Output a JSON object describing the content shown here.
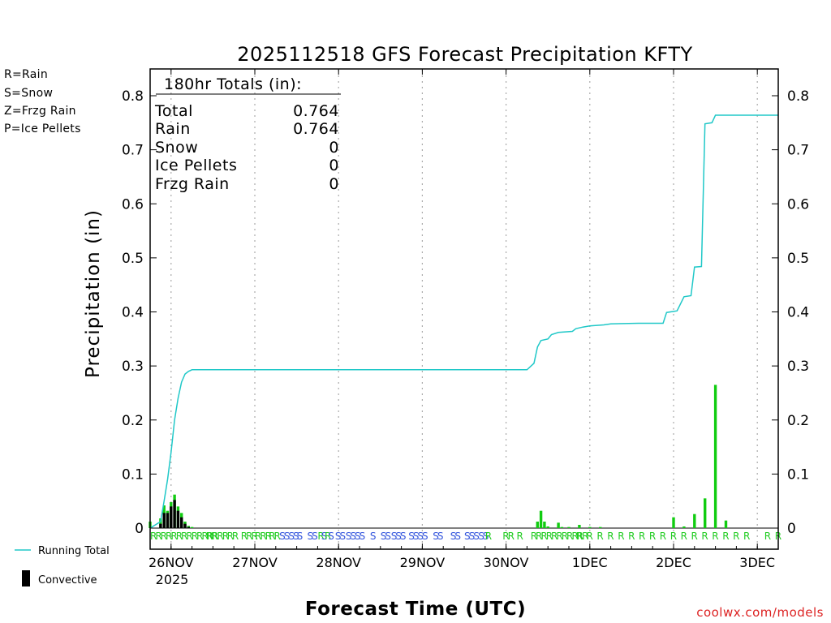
{
  "chart_data": {
    "type": "bar",
    "title": "2025112518 GFS Forecast Precipitation KFTY",
    "ylabel": "Precipitation (in)",
    "xlabel": "Forecast Time (UTC)",
    "ylim": [
      0,
      0.85
    ],
    "xlim_hours": [
      0,
      180
    ],
    "y_ticks": [
      "0.8",
      "0.7",
      "0.6",
      "0.5",
      "0.4",
      "0.3",
      "0.2",
      "0.1",
      "0"
    ],
    "y_tick_values": [
      0.8,
      0.7,
      0.6,
      0.5,
      0.4,
      0.3,
      0.2,
      0.1,
      0
    ],
    "x_date_labels": [
      "26NOV",
      "27NOV",
      "28NOV",
      "29NOV",
      "30NOV",
      "1DEC",
      "2DEC",
      "3DEC"
    ],
    "x_date_hours": [
      6,
      30,
      54,
      78,
      102,
      126,
      150,
      174
    ],
    "year_label": "2025",
    "totals": {
      "header": "180hr Totals (in):",
      "rows": [
        {
          "label": "Total",
          "value": "0.764"
        },
        {
          "label": "Rain",
          "value": "0.764"
        },
        {
          "label": "Snow",
          "value": "0"
        },
        {
          "label": "Ice Pellets",
          "value": "0"
        },
        {
          "label": "Frzg Rain",
          "value": "0"
        }
      ]
    },
    "type_legend": [
      {
        "text": "R=Rain",
        "color": "#22cc22"
      },
      {
        "text": "S=Snow",
        "color": "#3355dd"
      },
      {
        "text": "Z=Frzg Rain",
        "color": "#ee8833"
      },
      {
        "text": "P=Ice Pellets",
        "color": "#ee2299"
      }
    ],
    "key_legend": {
      "running_total": "Running Total",
      "convective": "Convective"
    },
    "credit": "coolwx.com/models",
    "colors": {
      "bar": "#11cc11",
      "convective": "#000000",
      "running_total": "#20c8c8",
      "grid": "#aaaaaa"
    },
    "bars": [
      {
        "h": 0,
        "v": 0.012,
        "conv": 0
      },
      {
        "h": 3,
        "v": 0.018,
        "conv": 0.008
      },
      {
        "h": 4,
        "v": 0.042,
        "conv": 0.028
      },
      {
        "h": 5,
        "v": 0.032,
        "conv": 0.028
      },
      {
        "h": 6,
        "v": 0.048,
        "conv": 0.04
      },
      {
        "h": 7,
        "v": 0.062,
        "conv": 0.052
      },
      {
        "h": 8,
        "v": 0.04,
        "conv": 0.032
      },
      {
        "h": 9,
        "v": 0.028,
        "conv": 0.02
      },
      {
        "h": 10,
        "v": 0.012,
        "conv": 0.008
      },
      {
        "h": 11,
        "v": 0.004,
        "conv": 0.002
      },
      {
        "h": 12,
        "v": 0.002,
        "conv": 0
      },
      {
        "h": 111,
        "v": 0.012,
        "conv": 0
      },
      {
        "h": 112,
        "v": 0.032,
        "conv": 0
      },
      {
        "h": 113,
        "v": 0.012,
        "conv": 0
      },
      {
        "h": 114,
        "v": 0.003,
        "conv": 0
      },
      {
        "h": 117,
        "v": 0.01,
        "conv": 0
      },
      {
        "h": 118,
        "v": 0.002,
        "conv": 0
      },
      {
        "h": 120,
        "v": 0.002,
        "conv": 0
      },
      {
        "h": 123,
        "v": 0.006,
        "conv": 0
      },
      {
        "h": 126,
        "v": 0.002,
        "conv": 0
      },
      {
        "h": 129,
        "v": 0.002,
        "conv": 0
      },
      {
        "h": 150,
        "v": 0.02,
        "conv": 0
      },
      {
        "h": 153,
        "v": 0.003,
        "conv": 0
      },
      {
        "h": 156,
        "v": 0.026,
        "conv": 0
      },
      {
        "h": 159,
        "v": 0.055,
        "conv": 0
      },
      {
        "h": 162,
        "v": 0.265,
        "conv": 0
      },
      {
        "h": 165,
        "v": 0.014,
        "conv": 0
      }
    ],
    "running_total": [
      {
        "h": 0,
        "v": 0.0
      },
      {
        "h": 3,
        "v": 0.012
      },
      {
        "h": 4,
        "v": 0.05
      },
      {
        "h": 5,
        "v": 0.09
      },
      {
        "h": 6,
        "v": 0.14
      },
      {
        "h": 7,
        "v": 0.2
      },
      {
        "h": 8,
        "v": 0.24
      },
      {
        "h": 9,
        "v": 0.27
      },
      {
        "h": 10,
        "v": 0.285
      },
      {
        "h": 11,
        "v": 0.29
      },
      {
        "h": 12,
        "v": 0.293
      },
      {
        "h": 108,
        "v": 0.293
      },
      {
        "h": 110,
        "v": 0.305
      },
      {
        "h": 111,
        "v": 0.335
      },
      {
        "h": 112,
        "v": 0.347
      },
      {
        "h": 114,
        "v": 0.35
      },
      {
        "h": 115,
        "v": 0.358
      },
      {
        "h": 117,
        "v": 0.362
      },
      {
        "h": 121,
        "v": 0.364
      },
      {
        "h": 122,
        "v": 0.369
      },
      {
        "h": 124,
        "v": 0.372
      },
      {
        "h": 126,
        "v": 0.374
      },
      {
        "h": 130,
        "v": 0.376
      },
      {
        "h": 132,
        "v": 0.378
      },
      {
        "h": 140,
        "v": 0.379
      },
      {
        "h": 147,
        "v": 0.379
      },
      {
        "h": 148,
        "v": 0.399
      },
      {
        "h": 151,
        "v": 0.402
      },
      {
        "h": 153,
        "v": 0.428
      },
      {
        "h": 155,
        "v": 0.43
      },
      {
        "h": 156,
        "v": 0.483
      },
      {
        "h": 158,
        "v": 0.484
      },
      {
        "h": 159,
        "v": 0.748
      },
      {
        "h": 161,
        "v": 0.75
      },
      {
        "h": 162,
        "v": 0.764
      },
      {
        "h": 180,
        "v": 0.764
      }
    ],
    "ptype_groups": [
      {
        "h": 0,
        "text": "RRRRRRRRRRRRRRR",
        "type": "R"
      },
      {
        "h": 16,
        "text": "RR",
        "type": "R"
      },
      {
        "h": 22,
        "text": "RR",
        "type": "R"
      },
      {
        "h": 26,
        "text": "RRR",
        "type": "R"
      },
      {
        "h": 30,
        "text": "RRR",
        "type": "R"
      },
      {
        "h": 34,
        "text": "RR",
        "type": "R"
      },
      {
        "h": 37,
        "text": "SSSS",
        "type": "S"
      },
      {
        "h": 42,
        "text": "S",
        "type": "S"
      },
      {
        "h": 45,
        "text": "SS",
        "type": "S"
      },
      {
        "h": 48,
        "text": "R",
        "type": "R"
      },
      {
        "h": 49,
        "text": "S",
        "type": "S"
      },
      {
        "h": 50,
        "text": "R",
        "type": "R"
      },
      {
        "h": 51,
        "text": "S",
        "type": "S"
      },
      {
        "h": 53,
        "text": "SS",
        "type": "S"
      },
      {
        "h": 56,
        "text": "SSSS",
        "type": "S"
      },
      {
        "h": 63,
        "text": "S",
        "type": "S"
      },
      {
        "h": 66,
        "text": "SS",
        "type": "S"
      },
      {
        "h": 69,
        "text": "SSS",
        "type": "S"
      },
      {
        "h": 74,
        "text": "SSSS",
        "type": "S"
      },
      {
        "h": 81,
        "text": "SS",
        "type": "S"
      },
      {
        "h": 86,
        "text": "SS",
        "type": "S"
      },
      {
        "h": 90,
        "text": "SSS",
        "type": "S"
      },
      {
        "h": 94,
        "text": "SS",
        "type": "S"
      },
      {
        "h": 96,
        "text": "R",
        "type": "R"
      },
      {
        "h": 101,
        "text": "RR",
        "type": "R"
      },
      {
        "h": 105,
        "text": "R",
        "type": "R"
      },
      {
        "h": 109,
        "text": "RRRRRRRRRRR",
        "type": "R"
      },
      {
        "h": 122,
        "text": "R",
        "type": "R"
      },
      {
        "h": 125,
        "text": "R",
        "type": "R"
      },
      {
        "h": 128,
        "text": "R",
        "type": "R"
      },
      {
        "h": 131,
        "text": "R",
        "type": "R"
      },
      {
        "h": 134,
        "text": "R",
        "type": "R"
      },
      {
        "h": 137,
        "text": "R",
        "type": "R"
      },
      {
        "h": 140,
        "text": "R",
        "type": "R"
      },
      {
        "h": 143,
        "text": "R",
        "type": "R"
      },
      {
        "h": 146,
        "text": "R",
        "type": "R"
      },
      {
        "h": 149,
        "text": "R",
        "type": "R"
      },
      {
        "h": 152,
        "text": "R",
        "type": "R"
      },
      {
        "h": 155,
        "text": "R",
        "type": "R"
      },
      {
        "h": 158,
        "text": "R",
        "type": "R"
      },
      {
        "h": 161,
        "text": "R",
        "type": "R"
      },
      {
        "h": 164,
        "text": "R",
        "type": "R"
      },
      {
        "h": 167,
        "text": "R",
        "type": "R"
      },
      {
        "h": 170,
        "text": "R",
        "type": "R"
      },
      {
        "h": 176,
        "text": "R",
        "type": "R"
      },
      {
        "h": 179,
        "text": "R",
        "type": "R"
      }
    ]
  }
}
